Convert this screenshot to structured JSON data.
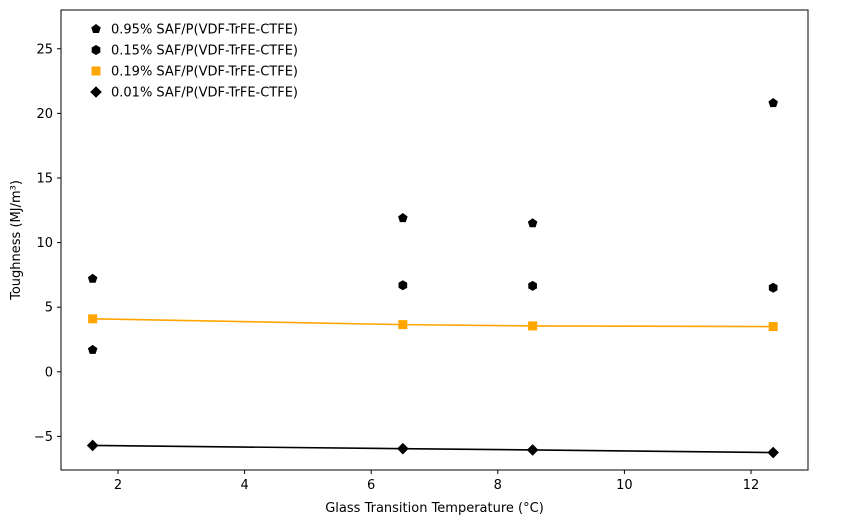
{
  "chart_data": {
    "type": "scatter",
    "xlabel": "Glass Transition Temperature (°C)",
    "ylabel": "Toughness (MJ/m³)",
    "xlim": [
      1.1,
      12.9
    ],
    "ylim": [
      -7.6,
      28.0
    ],
    "xticks": [
      2,
      4,
      6,
      8,
      10,
      12
    ],
    "yticks": [
      -5,
      0,
      5,
      10,
      15,
      20,
      25
    ],
    "xtick_labels": [
      "2",
      "4",
      "6",
      "8",
      "10",
      "12"
    ],
    "ytick_labels": [
      "−5",
      "0",
      "5",
      "10",
      "15",
      "20",
      "25"
    ],
    "grid": false,
    "legend_position": "top-left",
    "series": [
      {
        "name": "0.95% SAF/P(VDF-TrFE-CTFE)",
        "marker": "pentagon",
        "color": "#000000",
        "line": false,
        "x": [
          1.6,
          6.5,
          8.55,
          12.35,
          1.6
        ],
        "y": [
          7.2,
          11.9,
          11.5,
          20.8,
          1.7
        ]
      },
      {
        "name": "0.15% SAF/P(VDF-TrFE-CTFE)",
        "marker": "hexagon",
        "color": "#000000",
        "line": false,
        "x": [
          6.5,
          8.55,
          12.35
        ],
        "y": [
          6.7,
          6.65,
          6.5
        ]
      },
      {
        "name": "0.19% SAF/P(VDF-TrFE-CTFE)",
        "marker": "square",
        "color": "#ffa500",
        "line": true,
        "x": [
          1.6,
          6.5,
          8.55,
          12.35
        ],
        "y": [
          4.1,
          3.65,
          3.55,
          3.5
        ]
      },
      {
        "name": "0.01% SAF/P(VDF-TrFE-CTFE)",
        "marker": "diamond",
        "color": "#000000",
        "line": true,
        "x": [
          1.6,
          6.5,
          8.55,
          12.35
        ],
        "y": [
          -5.7,
          -5.95,
          -6.05,
          -6.25
        ]
      }
    ]
  }
}
